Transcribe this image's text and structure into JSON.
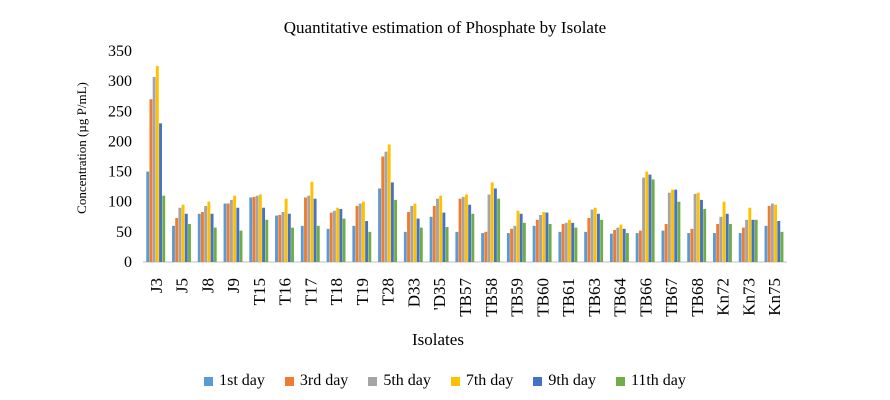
{
  "chart_data": {
    "type": "bar",
    "title": "Quantitative estimation of Phosphate by Isolate",
    "xlabel": "Isolates",
    "ylabel": "Concentration (µg P/mL)",
    "ylim": [
      0,
      350
    ],
    "yticks": [
      "0",
      "50",
      "100",
      "150",
      "200",
      "250",
      "300",
      "350"
    ],
    "legend_position": "bottom",
    "grid": false,
    "categories": [
      "J3",
      "J5",
      "J8",
      "J9",
      "T15",
      "T16",
      "T17",
      "T18",
      "T19",
      "T28",
      "D33",
      "D35",
      "TB57",
      "TB58",
      "TB59",
      "TB60",
      "TB61",
      "TB63",
      "TB64",
      "TB66",
      "TB67",
      "TB68",
      "Kn72",
      "Kn73",
      "Kn75"
    ],
    "category_labels": [
      "J3",
      "J5",
      "J8",
      "J9",
      "T15",
      "T16",
      "T17",
      "T18",
      "T19",
      "T28",
      "D33",
      "'D35",
      "TB57",
      "TB58",
      "TB59",
      "TB60",
      "TB61",
      "TB63",
      "TB64",
      "TB66",
      "TB67",
      "TB68",
      "Kn72",
      "Kn73",
      "Kn75"
    ],
    "series": [
      {
        "name": "1st day",
        "color": "#5B9BD5",
        "values": [
          150,
          60,
          80,
          97,
          107,
          77,
          60,
          55,
          60,
          122,
          50,
          75,
          50,
          48,
          48,
          60,
          50,
          50,
          47,
          48,
          52,
          48,
          48,
          48,
          60
        ]
      },
      {
        "name": "3rd day",
        "color": "#ED7D31",
        "values": [
          270,
          73,
          83,
          97,
          108,
          78,
          107,
          82,
          93,
          175,
          83,
          93,
          105,
          50,
          55,
          70,
          63,
          73,
          53,
          52,
          63,
          55,
          63,
          57,
          93
        ]
      },
      {
        "name": "5th day",
        "color": "#A5A5A5",
        "values": [
          307,
          90,
          93,
          103,
          110,
          83,
          110,
          85,
          97,
          183,
          93,
          105,
          108,
          112,
          60,
          78,
          65,
          87,
          57,
          140,
          115,
          113,
          75,
          70,
          97
        ]
      },
      {
        "name": "7th day",
        "color": "#FFC000",
        "values": [
          325,
          95,
          100,
          110,
          112,
          105,
          133,
          90,
          100,
          195,
          97,
          110,
          112,
          132,
          85,
          83,
          70,
          90,
          62,
          150,
          120,
          115,
          100,
          90,
          95
        ]
      },
      {
        "name": "9th day",
        "color": "#4472C4",
        "values": [
          230,
          80,
          80,
          90,
          90,
          80,
          105,
          88,
          68,
          132,
          72,
          82,
          95,
          122,
          80,
          82,
          65,
          80,
          55,
          145,
          120,
          103,
          80,
          70,
          68
        ]
      },
      {
        "name": "11th day",
        "color": "#70AD47",
        "values": [
          110,
          63,
          57,
          52,
          70,
          57,
          60,
          72,
          50,
          103,
          57,
          58,
          80,
          105,
          65,
          63,
          57,
          70,
          48,
          137,
          100,
          88,
          63,
          70,
          50
        ]
      }
    ]
  }
}
